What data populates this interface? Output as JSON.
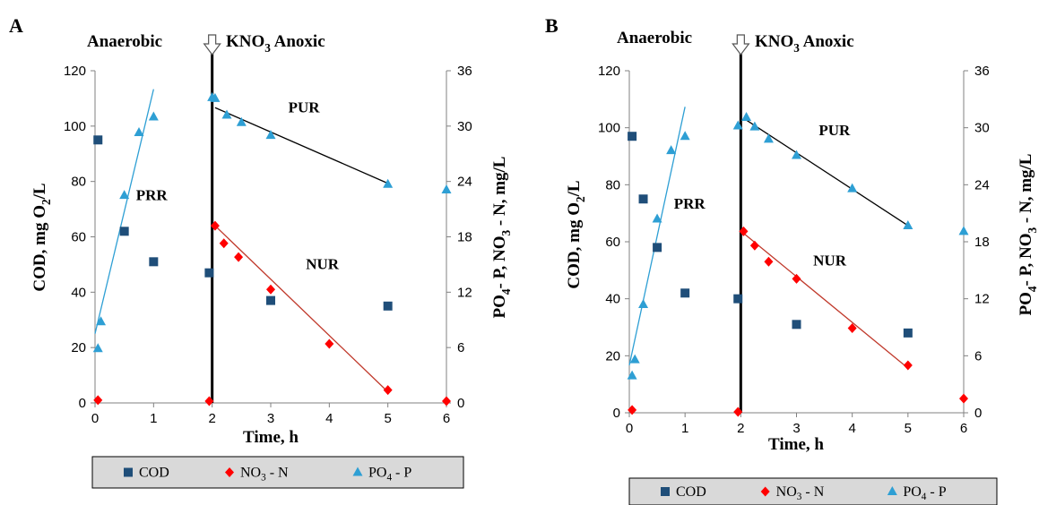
{
  "colors": {
    "cod": "#1f4e79",
    "no3": "#ff0000",
    "po4": "#2e9fd4",
    "no3_line": "#c0392b",
    "po4_line": "#2e9fd4",
    "pur_line": "#000000",
    "legend_bg": "#d9d9d9"
  },
  "phase_labels": {
    "anaerobic": "Anaerobic",
    "kno3": "KNO",
    "kno3_sub": "3",
    "anoxic": " Anoxic"
  },
  "rate_labels": {
    "prr": "PRR",
    "pur": "PUR",
    "nur": "NUR"
  },
  "legend": {
    "cod": "COD",
    "no3": "NO",
    "no3_sub": "3",
    "no3_suffix": " - N",
    "po4": "PO",
    "po4_sub": "4",
    "po4_suffix": " - P"
  },
  "chart_data": [
    {
      "panel": "A",
      "type": "scatter",
      "xlabel": "Time, h",
      "ylabel_left": {
        "main": "COD, mg O",
        "sub": "2",
        "end": "/L"
      },
      "ylabel_right": {
        "a": "PO",
        "sub1": "4",
        "b": "- P, NO",
        "sub2": "3",
        "c": " - N, mg/L"
      },
      "xlim": [
        0,
        6
      ],
      "y_left_lim": [
        0,
        120
      ],
      "y_right_lim": [
        0,
        36
      ],
      "x_ticks": [
        0,
        1,
        2,
        3,
        4,
        5,
        6
      ],
      "y_left_ticks": [
        0,
        20,
        40,
        60,
        80,
        100,
        120
      ],
      "y_right_ticks": [
        0,
        6,
        12,
        18,
        24,
        30,
        36
      ],
      "switch_time": 2,
      "series": [
        {
          "name": "COD",
          "axis": "left",
          "marker": "square",
          "points": [
            [
              0.05,
              95
            ],
            [
              0.5,
              62
            ],
            [
              1.0,
              51
            ],
            [
              1.95,
              47
            ],
            [
              3.0,
              37
            ],
            [
              5.0,
              35
            ]
          ]
        },
        {
          "name": "NO3 - N",
          "axis": "right",
          "marker": "diamond",
          "points": [
            [
              0.05,
              0.3
            ],
            [
              1.95,
              0.2
            ],
            [
              2.05,
              19.2
            ],
            [
              2.2,
              17.3
            ],
            [
              2.45,
              15.8
            ],
            [
              3.0,
              12.3
            ],
            [
              4.0,
              6.4
            ],
            [
              5.0,
              1.4
            ],
            [
              6.0,
              0.2
            ]
          ]
        },
        {
          "name": "PO4 - P",
          "axis": "right",
          "marker": "triangle",
          "points": [
            [
              0.05,
              5.9
            ],
            [
              0.1,
              8.8
            ],
            [
              0.5,
              22.5
            ],
            [
              0.75,
              29.3
            ],
            [
              1.0,
              31.0
            ],
            [
              2.0,
              33.1
            ],
            [
              2.05,
              33.0
            ],
            [
              2.25,
              31.2
            ],
            [
              2.5,
              30.4
            ],
            [
              3.0,
              29.0
            ],
            [
              5.0,
              23.7
            ],
            [
              6.0,
              23.1
            ]
          ]
        }
      ],
      "fit_lines": [
        {
          "label": "PRR",
          "axis": "right",
          "color_key": "po4_line",
          "from": [
            0.0,
            7.5
          ],
          "to": [
            1.0,
            34.0
          ]
        },
        {
          "label": "PUR",
          "axis": "right",
          "color_key": "pur_line",
          "from": [
            2.05,
            32.0
          ],
          "to": [
            5.0,
            23.8
          ]
        },
        {
          "label": "NUR",
          "axis": "right",
          "color_key": "no3_line",
          "from": [
            2.05,
            19.2
          ],
          "to": [
            5.0,
            1.2
          ]
        }
      ],
      "rate_label_at": {
        "prr": [
          0.7,
          22
        ],
        "pur": [
          3.3,
          31.5
        ],
        "nur": [
          3.6,
          14.5
        ]
      }
    },
    {
      "panel": "B",
      "type": "scatter",
      "xlabel": "Time, h",
      "ylabel_left": {
        "main": "COD, mg O",
        "sub": "2",
        "end": "/L"
      },
      "ylabel_right": {
        "a": "PO",
        "sub1": "4",
        "b": "- P, NO",
        "sub2": "3",
        "c": " - N, mg/L"
      },
      "xlim": [
        0,
        6
      ],
      "y_left_lim": [
        0,
        120
      ],
      "y_right_lim": [
        0,
        36
      ],
      "x_ticks": [
        0,
        1,
        2,
        3,
        4,
        5,
        6
      ],
      "y_left_ticks": [
        0,
        20,
        40,
        60,
        80,
        100,
        120
      ],
      "y_right_ticks": [
        0,
        6,
        12,
        18,
        24,
        30,
        36
      ],
      "switch_time": 2,
      "series": [
        {
          "name": "COD",
          "axis": "left",
          "marker": "square",
          "points": [
            [
              0.05,
              97
            ],
            [
              0.25,
              75
            ],
            [
              0.5,
              58
            ],
            [
              1.0,
              42
            ],
            [
              1.95,
              40
            ],
            [
              3.0,
              31
            ],
            [
              5.0,
              28
            ]
          ]
        },
        {
          "name": "NO3 - N",
          "axis": "right",
          "marker": "diamond",
          "points": [
            [
              0.05,
              0.3
            ],
            [
              1.95,
              0.1
            ],
            [
              2.05,
              19.1
            ],
            [
              2.25,
              17.6
            ],
            [
              2.5,
              15.9
            ],
            [
              3.0,
              14.1
            ],
            [
              4.0,
              8.9
            ],
            [
              5.0,
              5.0
            ],
            [
              6.0,
              1.5
            ]
          ]
        },
        {
          "name": "PO4 - P",
          "axis": "right",
          "marker": "triangle",
          "points": [
            [
              0.05,
              3.9
            ],
            [
              0.1,
              5.6
            ],
            [
              0.25,
              11.4
            ],
            [
              0.5,
              20.4
            ],
            [
              0.75,
              27.6
            ],
            [
              1.0,
              29.1
            ],
            [
              1.95,
              30.2
            ],
            [
              2.1,
              31.1
            ],
            [
              2.25,
              30.1
            ],
            [
              2.5,
              28.8
            ],
            [
              3.0,
              27.1
            ],
            [
              4.0,
              23.6
            ],
            [
              5.0,
              19.7
            ],
            [
              6.0,
              19.1
            ]
          ]
        }
      ],
      "fit_lines": [
        {
          "label": "PRR",
          "axis": "right",
          "color_key": "po4_line",
          "from": [
            0.0,
            5.0
          ],
          "to": [
            1.0,
            32.2
          ]
        },
        {
          "label": "PUR",
          "axis": "right",
          "color_key": "pur_line",
          "from": [
            2.05,
            31.0
          ],
          "to": [
            5.0,
            19.7
          ]
        },
        {
          "label": "NUR",
          "axis": "right",
          "color_key": "no3_line",
          "from": [
            2.05,
            18.9
          ],
          "to": [
            5.0,
            4.7
          ]
        }
      ],
      "rate_label_at": {
        "prr": [
          0.8,
          21.5
        ],
        "pur": [
          3.4,
          29.2
        ],
        "nur": [
          3.3,
          15.5
        ]
      }
    }
  ]
}
